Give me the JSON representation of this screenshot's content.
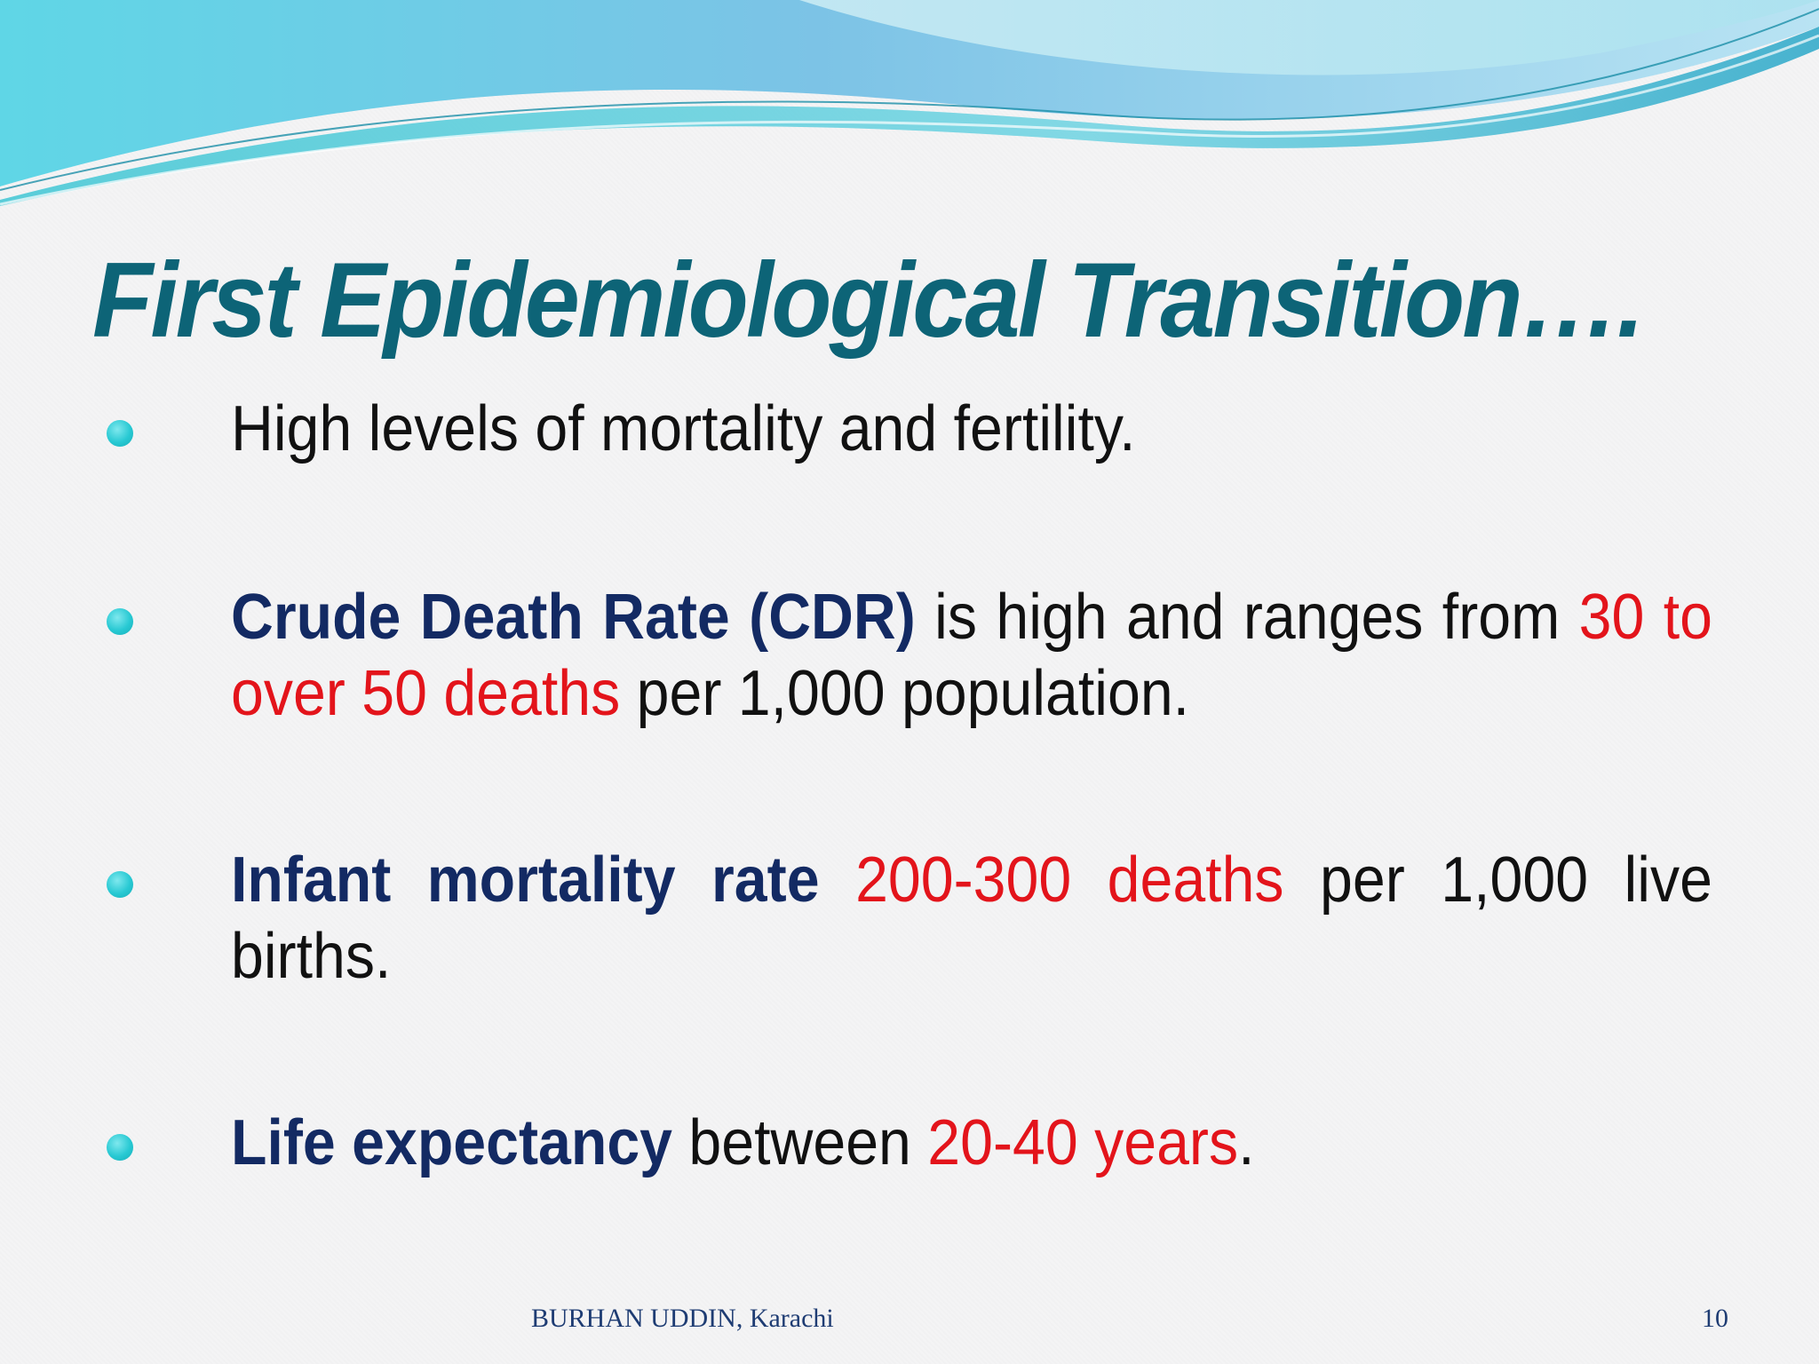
{
  "slide": {
    "title": "First Epidemiological Transition….",
    "bullets": [
      {
        "parts": [
          {
            "text": "High levels of mortality and fertility.",
            "style": "plain"
          }
        ]
      },
      {
        "parts": [
          {
            "text": "Crude Death Rate (CDR)",
            "style": "bold"
          },
          {
            "text": " is high and ranges from ",
            "style": "plain"
          },
          {
            "text": "30 to over 50 deaths",
            "style": "red"
          },
          {
            "text": " per 1,000 population.",
            "style": "plain"
          }
        ]
      },
      {
        "parts": [
          {
            "text": "Infant mortality rate",
            "style": "bold"
          },
          {
            "text": " ",
            "style": "plain"
          },
          {
            "text": "200-300 deaths",
            "style": "red"
          },
          {
            "text": " per 1,000 live births.",
            "style": "plain"
          }
        ]
      },
      {
        "parts": [
          {
            "text": "Life expectancy",
            "style": "bold"
          },
          {
            "text": " between ",
            "style": "plain"
          },
          {
            "text": "20-40 years",
            "style": "red"
          },
          {
            "text": ".",
            "style": "plain"
          }
        ]
      }
    ],
    "footer": {
      "author": "BURHAN UDDIN, Karachi",
      "page_number": "10"
    }
  },
  "colors": {
    "title": "#0d6477",
    "term": "#132a63",
    "highlight": "#e3141b",
    "bullet": "#28c9d3",
    "footer": "#1e3c73"
  }
}
